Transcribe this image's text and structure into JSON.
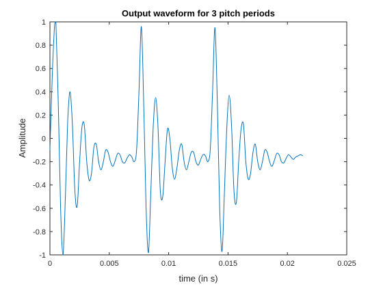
{
  "chart_data": {
    "type": "line",
    "title": "Output waveform for 3 pitch periods",
    "xlabel": "time (in s)",
    "ylabel": "Amplitude",
    "xlim": [
      0,
      0.025
    ],
    "ylim": [
      -1,
      1
    ],
    "x_ticks": [
      "0",
      "0.005",
      "0.01",
      "0.015",
      "0.02",
      "0.025"
    ],
    "y_ticks": [
      "-1",
      "-0.8",
      "-0.6",
      "-0.4",
      "-0.2",
      "0",
      "0.2",
      "0.4",
      "0.6",
      "0.8",
      "1"
    ],
    "grid": false,
    "line_color": "#0072BD",
    "series": [
      {
        "x": [
          0,
          0.0002,
          0.0004,
          0.0005,
          0.0007,
          0.0009,
          0.0011,
          0.0013,
          0.0015,
          0.0017,
          0.0019,
          0.0021,
          0.0023,
          0.0025,
          0.0027,
          0.0029,
          0.0031,
          0.0033,
          0.0035,
          0.0037,
          0.0039,
          0.0041,
          0.0043,
          0.0045,
          0.0047,
          0.0049,
          0.0051,
          0.0053,
          0.0055,
          0.0057,
          0.0059,
          0.0061,
          0.0063,
          0.0065,
          0.0067,
          0.0069,
          0.0071,
          0.0073,
          0.0075,
          0.0077,
          0.0079,
          0.0081,
          0.0083,
          0.0085,
          0.0087,
          0.0089,
          0.0091,
          0.0093,
          0.0095,
          0.0097,
          0.0099,
          0.0101,
          0.0103,
          0.0105,
          0.0107,
          0.0109,
          0.0111,
          0.0113,
          0.0115,
          0.0117,
          0.0119,
          0.0121,
          0.0123,
          0.0125,
          0.0127,
          0.0129,
          0.0131,
          0.0133,
          0.0135,
          0.0137,
          0.0139,
          0.0141,
          0.0143,
          0.0145,
          0.0147,
          0.0149,
          0.0151,
          0.0153,
          0.0155,
          0.0157,
          0.0159,
          0.0161,
          0.0163,
          0.0165,
          0.0167,
          0.0169,
          0.0171,
          0.0173,
          0.0175,
          0.0177,
          0.0179,
          0.0181,
          0.0183,
          0.0185,
          0.0187,
          0.0189,
          0.0191,
          0.0193,
          0.0195,
          0.0197,
          0.0199,
          0.0201,
          0.0203,
          0.0205,
          0.0207,
          0.0209,
          0.0211,
          0.0213
        ],
        "y": [
          -0.1,
          0.55,
          0.98,
          1.0,
          0.3,
          -0.6,
          -1.0,
          -0.5,
          0.15,
          0.4,
          0.1,
          -0.45,
          -0.58,
          -0.2,
          0.1,
          0.11,
          -0.2,
          -0.36,
          -0.3,
          -0.08,
          -0.05,
          -0.2,
          -0.27,
          -0.2,
          -0.1,
          -0.12,
          -0.2,
          -0.24,
          -0.19,
          -0.13,
          -0.14,
          -0.2,
          -0.21,
          -0.17,
          -0.14,
          -0.16,
          -0.2,
          -0.1,
          0.4,
          0.96,
          0.3,
          -0.6,
          -0.98,
          -0.45,
          0.1,
          0.35,
          0.1,
          -0.45,
          -0.5,
          -0.2,
          0.08,
          0.0,
          -0.25,
          -0.35,
          -0.25,
          -0.1,
          -0.05,
          -0.2,
          -0.27,
          -0.2,
          -0.12,
          -0.12,
          -0.2,
          -0.23,
          -0.18,
          -0.14,
          -0.15,
          -0.2,
          -0.1,
          0.4,
          0.95,
          0.3,
          -0.6,
          -0.97,
          -0.45,
          0.1,
          0.37,
          0.1,
          -0.45,
          -0.55,
          -0.2,
          0.08,
          0.12,
          -0.2,
          -0.35,
          -0.3,
          -0.12,
          -0.05,
          -0.2,
          -0.27,
          -0.2,
          -0.1,
          -0.12,
          -0.2,
          -0.24,
          -0.19,
          -0.13,
          -0.14,
          -0.2,
          -0.21,
          -0.17,
          -0.14,
          -0.16,
          -0.18,
          -0.16,
          -0.15,
          -0.14,
          -0.15
        ]
      }
    ]
  }
}
